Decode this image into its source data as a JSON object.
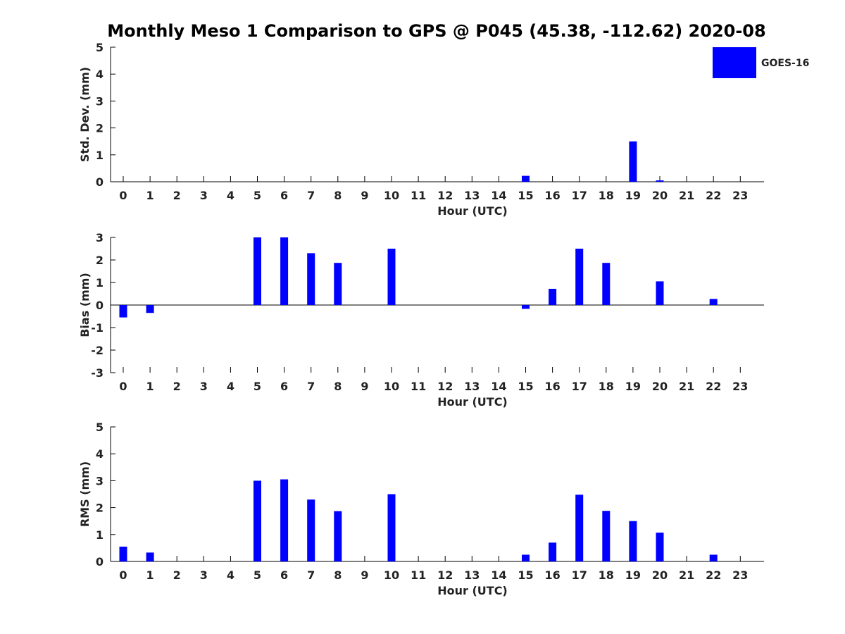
{
  "title": "Monthly Meso 1 Comparison to GPS @ P045 (45.38, -112.62) 2020-08",
  "legend": {
    "label": "GOES-16",
    "color": "#0000ff",
    "placement": "top-right"
  },
  "chart_data": [
    {
      "type": "bar",
      "ylabel": "Std. Dev. (mm)",
      "xlabel": "Hour (UTC)",
      "categories": [
        "0",
        "1",
        "2",
        "3",
        "4",
        "5",
        "6",
        "7",
        "8",
        "9",
        "10",
        "11",
        "12",
        "13",
        "14",
        "15",
        "16",
        "17",
        "18",
        "19",
        "20",
        "21",
        "22",
        "23"
      ],
      "ylim": [
        0,
        5
      ],
      "yticks": [
        "0",
        "1",
        "2",
        "3",
        "4",
        "5"
      ],
      "series": [
        {
          "name": "GOES-16",
          "values": [
            0,
            0,
            0,
            0,
            0,
            0,
            0,
            0,
            0,
            0,
            0,
            0,
            0,
            0,
            0,
            0.22,
            0,
            0,
            0,
            1.5,
            0.05,
            0,
            0,
            0
          ]
        }
      ]
    },
    {
      "type": "bar",
      "ylabel": "Bias (mm)",
      "xlabel": "Hour (UTC)",
      "categories": [
        "0",
        "1",
        "2",
        "3",
        "4",
        "5",
        "6",
        "7",
        "8",
        "9",
        "10",
        "11",
        "12",
        "13",
        "14",
        "15",
        "16",
        "17",
        "18",
        "19",
        "20",
        "21",
        "22",
        "23"
      ],
      "ylim": [
        -3,
        3
      ],
      "yticks": [
        "-3",
        "-2",
        "-1",
        "0",
        "1",
        "2",
        "3"
      ],
      "series": [
        {
          "name": "GOES-16",
          "values": [
            -0.55,
            -0.35,
            0,
            0,
            0,
            3.0,
            3.0,
            2.3,
            1.87,
            0,
            2.5,
            0,
            0,
            0,
            0,
            -0.17,
            0.72,
            2.5,
            1.87,
            0,
            1.05,
            0,
            0.27,
            0
          ]
        }
      ]
    },
    {
      "type": "bar",
      "ylabel": "RMS (mm)",
      "xlabel": "Hour (UTC)",
      "categories": [
        "0",
        "1",
        "2",
        "3",
        "4",
        "5",
        "6",
        "7",
        "8",
        "9",
        "10",
        "11",
        "12",
        "13",
        "14",
        "15",
        "16",
        "17",
        "18",
        "19",
        "20",
        "21",
        "22",
        "23"
      ],
      "ylim": [
        0,
        5
      ],
      "yticks": [
        "0",
        "1",
        "2",
        "3",
        "4",
        "5"
      ],
      "series": [
        {
          "name": "GOES-16",
          "values": [
            0.55,
            0.33,
            0,
            0,
            0,
            3.0,
            3.05,
            2.3,
            1.87,
            0,
            2.5,
            0,
            0,
            0,
            0,
            0.25,
            0.7,
            2.48,
            1.88,
            1.5,
            1.07,
            0,
            0.25,
            0
          ]
        }
      ]
    }
  ]
}
